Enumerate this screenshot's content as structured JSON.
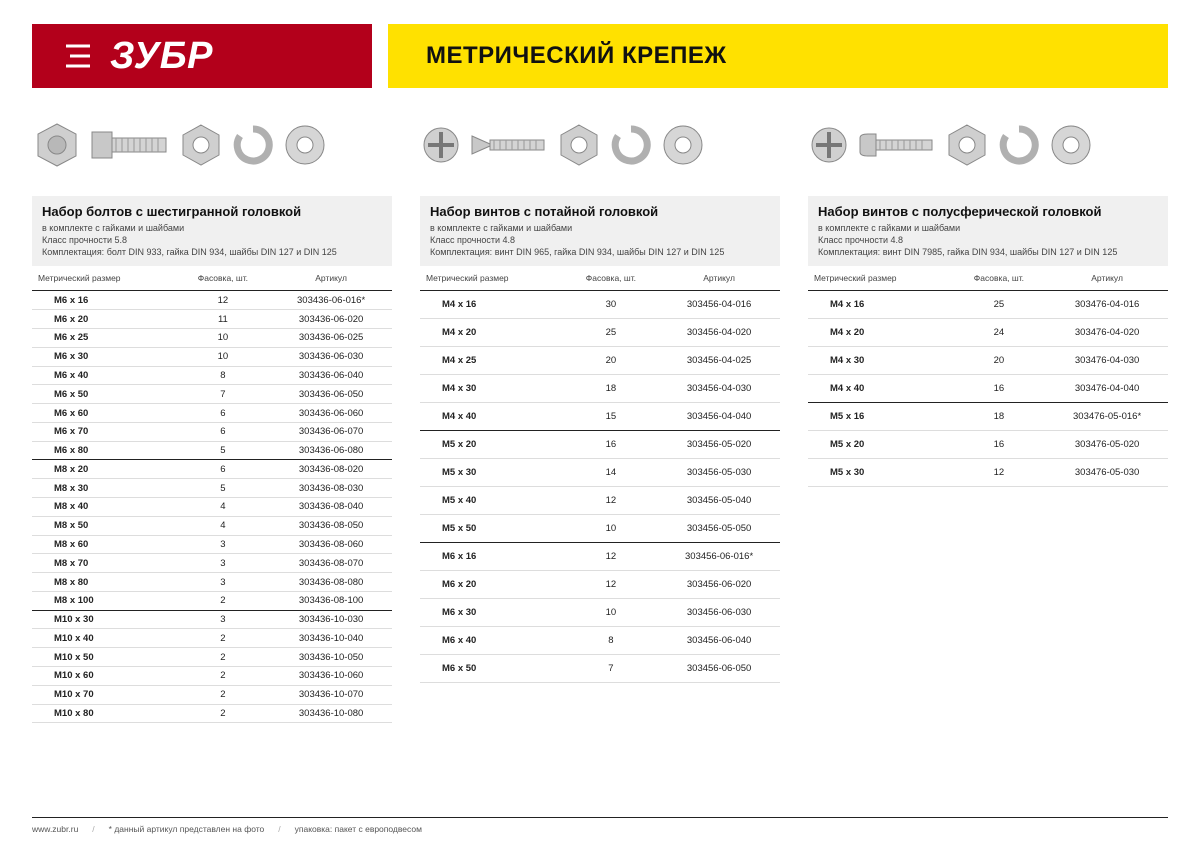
{
  "brand": "ЗУБР",
  "page_title": "МЕТРИЧЕСКИЙ КРЕПЕЖ",
  "colors": {
    "brand_red": "#b3001b",
    "brand_yellow": "#ffe100",
    "text": "#1a1a1a",
    "grid": "#dddddd",
    "group_border": "#222222",
    "header_bg": "#f0f0f0"
  },
  "table_headers": {
    "size": "Метрический размер",
    "qty": "Фасовка, шт.",
    "sku": "Артикул"
  },
  "columns": [
    {
      "title": "Набор болтов с шестигранной головкой",
      "sub1": "в комплекте с гайками и шайбами",
      "sub2": "Класс прочности 5.8",
      "sub3": "Комплектация: болт DIN 933, гайка DIN 934, шайбы DIN 127 и DIN 125",
      "rows": [
        [
          "M6 x 16",
          "12",
          "303436-06-016*",
          false
        ],
        [
          "M6 x 20",
          "11",
          "303436-06-020",
          false
        ],
        [
          "M6 x 25",
          "10",
          "303436-06-025",
          false
        ],
        [
          "M6 x 30",
          "10",
          "303436-06-030",
          false
        ],
        [
          "M6 x 40",
          "8",
          "303436-06-040",
          false
        ],
        [
          "M6 x 50",
          "7",
          "303436-06-050",
          false
        ],
        [
          "M6 x 60",
          "6",
          "303436-06-060",
          false
        ],
        [
          "M6 x 70",
          "6",
          "303436-06-070",
          false
        ],
        [
          "M6 x 80",
          "5",
          "303436-06-080",
          true
        ],
        [
          "M8 x 20",
          "6",
          "303436-08-020",
          false
        ],
        [
          "M8 x 30",
          "5",
          "303436-08-030",
          false
        ],
        [
          "M8 x 40",
          "4",
          "303436-08-040",
          false
        ],
        [
          "M8 x 50",
          "4",
          "303436-08-050",
          false
        ],
        [
          "M8 x 60",
          "3",
          "303436-08-060",
          false
        ],
        [
          "M8 x 70",
          "3",
          "303436-08-070",
          false
        ],
        [
          "M8 x 80",
          "3",
          "303436-08-080",
          false
        ],
        [
          "M8 x 100",
          "2",
          "303436-08-100",
          true
        ],
        [
          "M10 x 30",
          "3",
          "303436-10-030",
          false
        ],
        [
          "M10 x 40",
          "2",
          "303436-10-040",
          false
        ],
        [
          "M10 x 50",
          "2",
          "303436-10-050",
          false
        ],
        [
          "M10 x 60",
          "2",
          "303436-10-060",
          false
        ],
        [
          "M10 x 70",
          "2",
          "303436-10-070",
          false
        ],
        [
          "M10 x 80",
          "2",
          "303436-10-080",
          false
        ]
      ]
    },
    {
      "title": "Набор винтов с потайной головкой",
      "sub1": "в комплекте с гайками и шайбами",
      "sub2": "Класс прочности 4.8",
      "sub3": "Комплектация: винт DIN 965, гайка DIN 934, шайбы DIN 127 и DIN 125",
      "rows": [
        [
          "M4 x 16",
          "30",
          "303456-04-016",
          false
        ],
        [
          "M4 x 20",
          "25",
          "303456-04-020",
          false
        ],
        [
          "M4 x 25",
          "20",
          "303456-04-025",
          false
        ],
        [
          "M4 x 30",
          "18",
          "303456-04-030",
          false
        ],
        [
          "M4 x 40",
          "15",
          "303456-04-040",
          true
        ],
        [
          "M5 x 20",
          "16",
          "303456-05-020",
          false
        ],
        [
          "M5 x 30",
          "14",
          "303456-05-030",
          false
        ],
        [
          "M5 x 40",
          "12",
          "303456-05-040",
          false
        ],
        [
          "M5 x 50",
          "10",
          "303456-05-050",
          true
        ],
        [
          "M6 x 16",
          "12",
          "303456-06-016*",
          false
        ],
        [
          "M6 x 20",
          "12",
          "303456-06-020",
          false
        ],
        [
          "M6 x 30",
          "10",
          "303456-06-030",
          false
        ],
        [
          "M6 x 40",
          "8",
          "303456-06-040",
          false
        ],
        [
          "M6 x 50",
          "7",
          "303456-06-050",
          false
        ]
      ]
    },
    {
      "title": "Набор винтов с полусферической головкой",
      "sub1": "в комплекте с гайками и шайбами",
      "sub2": "Класс прочности 4.8",
      "sub3": "Комплектация: винт DIN 7985, гайка DIN 934, шайбы DIN 127 и DIN 125",
      "rows": [
        [
          "M4 x 16",
          "25",
          "303476-04-016",
          false
        ],
        [
          "M4 x 20",
          "24",
          "303476-04-020",
          false
        ],
        [
          "M4 x 30",
          "20",
          "303476-04-030",
          false
        ],
        [
          "M4 x 40",
          "16",
          "303476-04-040",
          true
        ],
        [
          "M5 x 16",
          "18",
          "303476-05-016*",
          false
        ],
        [
          "M5 x 20",
          "16",
          "303476-05-020",
          false
        ],
        [
          "M5 x 30",
          "12",
          "303476-05-030",
          false
        ]
      ]
    }
  ],
  "footer": {
    "site": "www.zubr.ru",
    "note1": "* данный артикул представлен на фото",
    "note2": "упаковка: пакет с европодвесом"
  }
}
